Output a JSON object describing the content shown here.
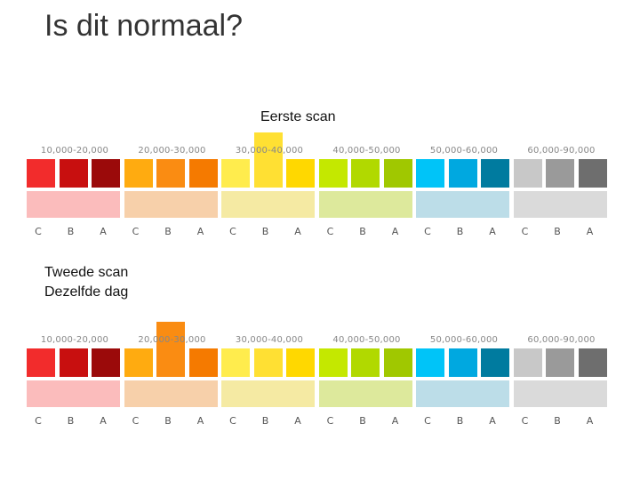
{
  "slide": {
    "title": "Is dit normaal?",
    "first_scan_label": "Eerste scan",
    "second_scan_label_line1": "Tweede scan",
    "second_scan_label_line2": "Dezelfde dag"
  },
  "scales": [
    {
      "name": "first-scan",
      "highlighted": {
        "group": 2,
        "grade": 1
      },
      "groups": [
        {
          "range": "10,000-20,000",
          "grades": [
            "C",
            "B",
            "A"
          ],
          "colors": [
            "#f22c2c",
            "#c80f0f",
            "#9b0a0a"
          ],
          "band": "#fbbcbc"
        },
        {
          "range": "20,000-30,000",
          "grades": [
            "C",
            "B",
            "A"
          ],
          "colors": [
            "#ffab10",
            "#fa8c12",
            "#f57a00"
          ],
          "band": "#f7d0aa"
        },
        {
          "range": "30,000-40,000",
          "grades": [
            "C",
            "B",
            "A"
          ],
          "colors": [
            "#ffec4d",
            "#ffe033",
            "#ffd800"
          ],
          "band": "#f5eaa3"
        },
        {
          "range": "40,000-50,000",
          "grades": [
            "C",
            "B",
            "A"
          ],
          "colors": [
            "#c4e800",
            "#b1d900",
            "#a0c800"
          ],
          "band": "#dde99c"
        },
        {
          "range": "50,000-60,000",
          "grades": [
            "C",
            "B",
            "A"
          ],
          "colors": [
            "#00c4f8",
            "#00a8e0",
            "#007b9f"
          ],
          "band": "#bcdde8"
        },
        {
          "range": "60,000-90,000",
          "grades": [
            "C",
            "B",
            "A"
          ],
          "colors": [
            "#c8c8c8",
            "#9a9a9a",
            "#6e6e6e"
          ],
          "band": "#dadada"
        }
      ]
    },
    {
      "name": "second-scan",
      "highlighted": {
        "group": 1,
        "grade": 1
      },
      "groups": [
        {
          "range": "10,000-20,000",
          "grades": [
            "C",
            "B",
            "A"
          ],
          "colors": [
            "#f22c2c",
            "#c80f0f",
            "#9b0a0a"
          ],
          "band": "#fbbcbc"
        },
        {
          "range": "20,000-30,000",
          "grades": [
            "C",
            "B",
            "A"
          ],
          "colors": [
            "#ffab10",
            "#fa8c12",
            "#f57a00"
          ],
          "band": "#f7d0aa"
        },
        {
          "range": "30,000-40,000",
          "grades": [
            "C",
            "B",
            "A"
          ],
          "colors": [
            "#ffec4d",
            "#ffe033",
            "#ffd800"
          ],
          "band": "#f5eaa3"
        },
        {
          "range": "40,000-50,000",
          "grades": [
            "C",
            "B",
            "A"
          ],
          "colors": [
            "#c4e800",
            "#b1d900",
            "#a0c800"
          ],
          "band": "#dde99c"
        },
        {
          "range": "50,000-60,000",
          "grades": [
            "C",
            "B",
            "A"
          ],
          "colors": [
            "#00c4f8",
            "#00a8e0",
            "#007b9f"
          ],
          "band": "#bcdde8"
        },
        {
          "range": "60,000-90,000",
          "grades": [
            "C",
            "B",
            "A"
          ],
          "colors": [
            "#c8c8c8",
            "#9a9a9a",
            "#6e6e6e"
          ],
          "band": "#dadada"
        }
      ]
    }
  ]
}
